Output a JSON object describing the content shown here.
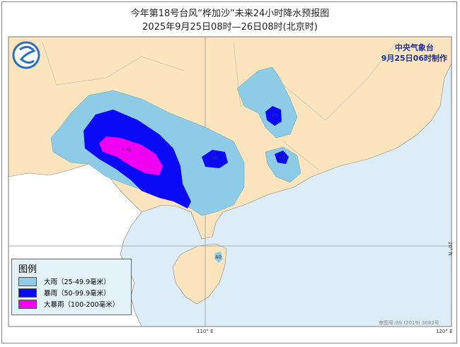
{
  "title": "今年第18号台风“桦加沙”未来24小时降水预报图",
  "subtitle": "2025年9月25日08时—26日08时(北京时)",
  "agency": {
    "name": "中央气象台",
    "made": "9月25日06时制作"
  },
  "legend": {
    "title": "图例",
    "items": [
      {
        "label": "大雨（25-49.9毫米）",
        "color": "#8ecbe6"
      },
      {
        "label": "暴雨（50-99.9毫米）",
        "color": "#0a0af5"
      },
      {
        "label": "大暴雨（100-200毫米）",
        "color": "#f000f0"
      }
    ]
  },
  "axis": {
    "lon110": "110° E",
    "lon120": "120° E",
    "lat20": "20° N"
  },
  "map_number": "审图号:GS (2019) 3082号",
  "contour_labels": [
    "200",
    "70",
    "60",
    "60",
    "40"
  ],
  "colors": {
    "land": "#fbe4be",
    "sea": "#dcedf8",
    "foreign": "#ffffff"
  }
}
